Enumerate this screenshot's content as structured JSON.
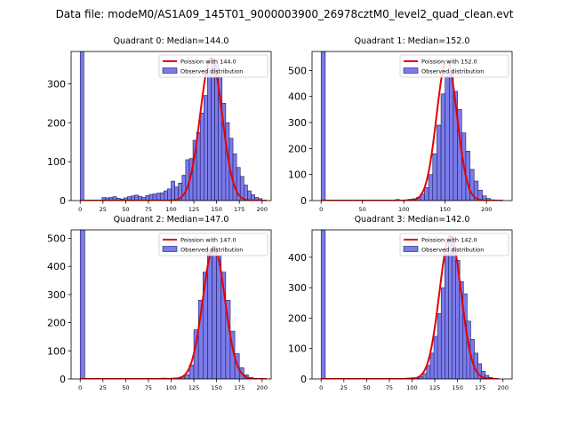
{
  "suptitle": "Data file: modeM0/AS1A09_145T01_9000003900_26978cztM0_level2_quad_clean.evt",
  "colors": {
    "bar_fill": "#7b7bea",
    "bar_edge": "#1c1c5e",
    "line": "#e60000",
    "axis": "#000000"
  },
  "chart_data": [
    {
      "type": "bar",
      "title": "Quadrant 0: Median=144.0",
      "legend": {
        "position": "top-right",
        "line_label": "Poission with 144.0",
        "bar_label": "Observed distribution"
      },
      "xlim": [
        -10,
        210
      ],
      "ylim": [
        0,
        383
      ],
      "xticks": [
        0,
        25,
        50,
        75,
        100,
        125,
        150,
        175,
        200
      ],
      "yticks": [
        0,
        100,
        200,
        300
      ],
      "bin_width": 4,
      "bins": [
        [
          0,
          383
        ],
        [
          24,
          8
        ],
        [
          28,
          7
        ],
        [
          32,
          8
        ],
        [
          36,
          10
        ],
        [
          40,
          6
        ],
        [
          44,
          4
        ],
        [
          48,
          7
        ],
        [
          52,
          10
        ],
        [
          56,
          12
        ],
        [
          60,
          14
        ],
        [
          64,
          11
        ],
        [
          68,
          8
        ],
        [
          72,
          13
        ],
        [
          76,
          16
        ],
        [
          80,
          17
        ],
        [
          84,
          19
        ],
        [
          88,
          20
        ],
        [
          92,
          25
        ],
        [
          96,
          30
        ],
        [
          100,
          50
        ],
        [
          104,
          35
        ],
        [
          108,
          45
        ],
        [
          112,
          65
        ],
        [
          116,
          105
        ],
        [
          120,
          108
        ],
        [
          124,
          155
        ],
        [
          128,
          175
        ],
        [
          132,
          225
        ],
        [
          136,
          270
        ],
        [
          140,
          340
        ],
        [
          144,
          355
        ],
        [
          148,
          352
        ],
        [
          152,
          320
        ],
        [
          156,
          250
        ],
        [
          160,
          200
        ],
        [
          164,
          160
        ],
        [
          168,
          120
        ],
        [
          172,
          85
        ],
        [
          176,
          62
        ],
        [
          180,
          40
        ],
        [
          184,
          25
        ],
        [
          188,
          15
        ],
        [
          192,
          8
        ],
        [
          196,
          5
        ]
      ],
      "fit": {
        "mean": 144.0,
        "peak": 367,
        "range": [
          0,
          205
        ]
      }
    },
    {
      "type": "bar",
      "title": "Quadrant 1: Median=152.0",
      "legend": {
        "position": "top-right",
        "line_label": "Poission with 152.0",
        "bar_label": "Observed distribution"
      },
      "xlim": [
        -11,
        231
      ],
      "ylim": [
        0,
        573
      ],
      "xticks": [
        0,
        50,
        100,
        150,
        200
      ],
      "yticks": [
        0,
        100,
        200,
        300,
        400,
        500
      ],
      "bin_width": 5,
      "bins": [
        [
          0,
          573
        ],
        [
          90,
          4
        ],
        [
          100,
          3
        ],
        [
          105,
          5
        ],
        [
          110,
          7
        ],
        [
          115,
          12
        ],
        [
          120,
          25
        ],
        [
          125,
          50
        ],
        [
          130,
          100
        ],
        [
          135,
          180
        ],
        [
          140,
          290
        ],
        [
          145,
          410
        ],
        [
          150,
          480
        ],
        [
          155,
          500
        ],
        [
          160,
          420
        ],
        [
          165,
          350
        ],
        [
          170,
          260
        ],
        [
          175,
          190
        ],
        [
          180,
          120
        ],
        [
          185,
          75
        ],
        [
          190,
          40
        ],
        [
          195,
          18
        ],
        [
          200,
          8
        ],
        [
          205,
          3
        ],
        [
          210,
          1
        ]
      ],
      "fit": {
        "mean": 152.0,
        "peak": 540,
        "range": [
          0,
          220
        ]
      }
    },
    {
      "type": "bar",
      "title": "Quadrant 2: Median=147.0",
      "legend": {
        "position": "top-right",
        "line_label": "Poission with 147.0",
        "bar_label": "Observed distribution"
      },
      "xlim": [
        -10,
        210
      ],
      "ylim": [
        0,
        530
      ],
      "xticks": [
        0,
        25,
        50,
        75,
        100,
        125,
        150,
        175,
        200
      ],
      "yticks": [
        0,
        100,
        200,
        300,
        400,
        500
      ],
      "bin_width": 5,
      "bins": [
        [
          0,
          530
        ],
        [
          85,
          2
        ],
        [
          90,
          3
        ],
        [
          95,
          2
        ],
        [
          100,
          3
        ],
        [
          105,
          4
        ],
        [
          110,
          8
        ],
        [
          115,
          15
        ],
        [
          120,
          50
        ],
        [
          125,
          175
        ],
        [
          130,
          280
        ],
        [
          135,
          380
        ],
        [
          140,
          460
        ],
        [
          145,
          470
        ],
        [
          150,
          440
        ],
        [
          155,
          380
        ],
        [
          160,
          280
        ],
        [
          165,
          170
        ],
        [
          170,
          90
        ],
        [
          175,
          40
        ],
        [
          180,
          15
        ],
        [
          185,
          5
        ],
        [
          190,
          2
        ]
      ],
      "fit": {
        "mean": 147.0,
        "peak": 470,
        "range": [
          0,
          205
        ]
      }
    },
    {
      "type": "bar",
      "title": "Quadrant 3: Median=142.0",
      "legend": {
        "position": "top-right",
        "line_label": "Poission with 142.0",
        "bar_label": "Observed distribution"
      },
      "xlim": [
        -10,
        210
      ],
      "ylim": [
        0,
        490
      ],
      "xticks": [
        0,
        25,
        50,
        75,
        100,
        125,
        150,
        175,
        200
      ],
      "yticks": [
        0,
        100,
        200,
        300,
        400
      ],
      "bin_width": 4.5,
      "bins": [
        [
          0,
          490
        ],
        [
          78,
          2
        ],
        [
          86,
          2
        ],
        [
          94,
          3
        ],
        [
          99,
          4
        ],
        [
          104,
          5
        ],
        [
          108,
          8
        ],
        [
          112,
          18
        ],
        [
          116,
          45
        ],
        [
          120,
          85
        ],
        [
          124,
          140
        ],
        [
          128,
          215
        ],
        [
          132,
          300
        ],
        [
          136,
          410
        ],
        [
          140,
          470
        ],
        [
          144,
          430
        ],
        [
          148,
          390
        ],
        [
          152,
          320
        ],
        [
          156,
          280
        ],
        [
          160,
          190
        ],
        [
          164,
          130
        ],
        [
          168,
          85
        ],
        [
          172,
          50
        ],
        [
          176,
          25
        ],
        [
          180,
          12
        ],
        [
          184,
          5
        ],
        [
          188,
          2
        ]
      ],
      "fit": {
        "mean": 142.0,
        "peak": 470,
        "range": [
          0,
          195
        ]
      }
    }
  ]
}
